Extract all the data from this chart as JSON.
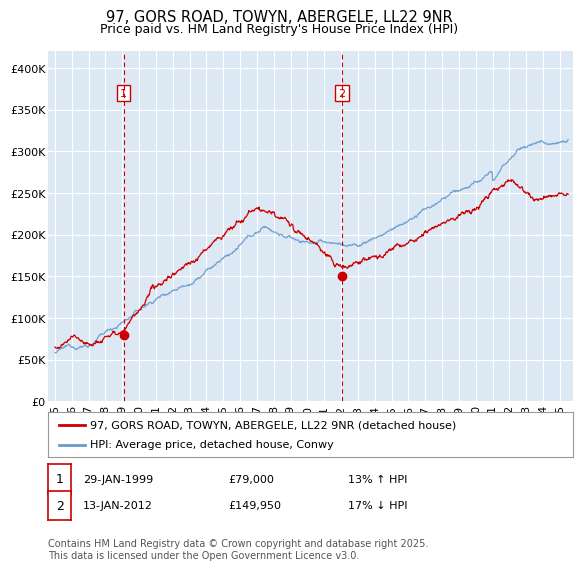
{
  "title": "97, GORS ROAD, TOWYN, ABERGELE, LL22 9NR",
  "subtitle": "Price paid vs. HM Land Registry's House Price Index (HPI)",
  "ylim": [
    0,
    420000
  ],
  "yticks": [
    0,
    50000,
    100000,
    150000,
    200000,
    250000,
    300000,
    350000,
    400000
  ],
  "ytick_labels": [
    "£0",
    "£50K",
    "£100K",
    "£150K",
    "£200K",
    "£250K",
    "£300K",
    "£350K",
    "£400K"
  ],
  "background_color": "#ffffff",
  "plot_bg_color": "#dce9f5",
  "grid_color": "#ffffff",
  "line1_color": "#cc0000",
  "line2_color": "#6699cc",
  "transaction1_x": 1999.08,
  "transaction1_y": 79000,
  "transaction2_x": 2012.04,
  "transaction2_y": 149950,
  "vline_color": "#cc0000",
  "legend1_label": "97, GORS ROAD, TOWYN, ABERGELE, LL22 9NR (detached house)",
  "legend2_label": "HPI: Average price, detached house, Conwy",
  "transaction1_date": "29-JAN-1999",
  "transaction1_price": "£79,000",
  "transaction1_pct": "13% ↑ HPI",
  "transaction2_date": "13-JAN-2012",
  "transaction2_price": "£149,950",
  "transaction2_pct": "17% ↓ HPI",
  "footnote": "Contains HM Land Registry data © Crown copyright and database right 2025.\nThis data is licensed under the Open Government Licence v3.0.",
  "title_fontsize": 10.5,
  "subtitle_fontsize": 9,
  "tick_fontsize": 8,
  "legend_fontsize": 8,
  "footnote_fontsize": 7,
  "xlim_left": 1994.6,
  "xlim_right": 2025.8
}
